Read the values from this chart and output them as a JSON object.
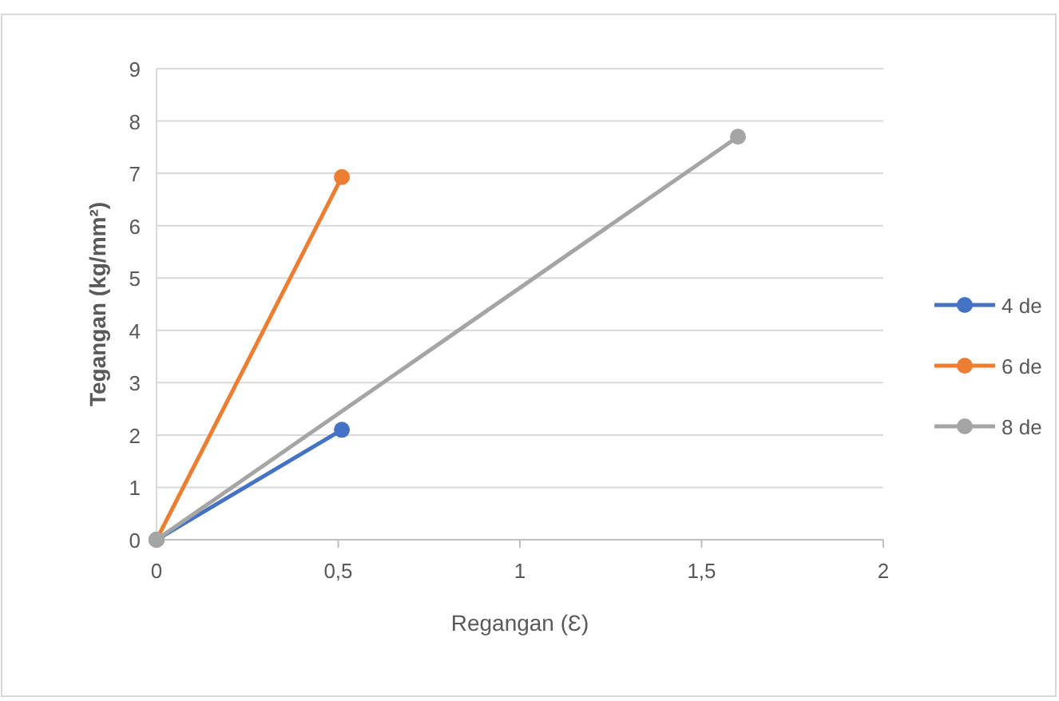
{
  "chart_data": {
    "type": "line",
    "xlabel": "Regangan (Ɛ)",
    "ylabel": "Tegangan (kg/mm²)",
    "series": [
      {
        "name": "4 de",
        "color": "#4472c4",
        "x": [
          0,
          0.51
        ],
        "values": [
          0,
          2.1
        ]
      },
      {
        "name": "6 de",
        "color": "#ed7d31",
        "x": [
          0,
          0.51
        ],
        "values": [
          0,
          6.93
        ]
      },
      {
        "name": "8 de",
        "color": "#a5a5a5",
        "x": [
          0,
          1.6
        ],
        "values": [
          0,
          7.7
        ]
      }
    ],
    "xlim": [
      0,
      2
    ],
    "xticks": [
      0,
      {
        "value": 0.5,
        "label": "0,5"
      },
      1,
      {
        "value": 1.5,
        "label": "1,5"
      },
      2
    ],
    "ylim": [
      0,
      9
    ],
    "yticks": [
      0,
      1,
      2,
      3,
      4,
      5,
      6,
      7,
      8,
      9
    ],
    "grid": "y",
    "legend": "right",
    "marker": "circle",
    "line_style": "solid"
  }
}
